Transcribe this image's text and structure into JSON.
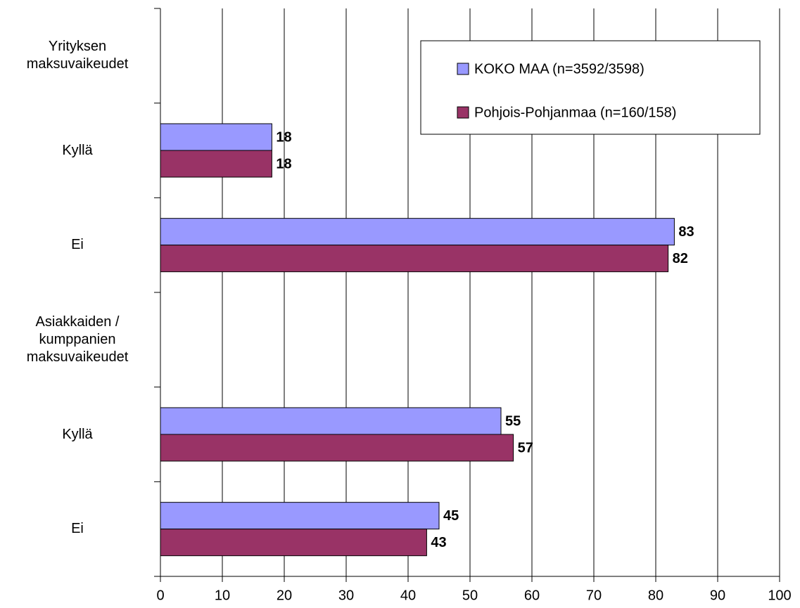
{
  "chart_data": {
    "type": "hbar",
    "categories": [
      "Yrityksen\nmaksuvaikeudet",
      "Kyllä",
      "Ei",
      "Asiakkaiden /\nkumppanien\nmaksuvaikeudet",
      "Kyllä",
      "Ei"
    ],
    "series": [
      {
        "name": "KOKO MAA (n=3592/3598)",
        "color": "#9999ff",
        "values": [
          null,
          18,
          83,
          null,
          55,
          45
        ]
      },
      {
        "name": "Pohjois-Pohjanmaa (n=160/158)",
        "color": "#993366",
        "values": [
          null,
          18,
          82,
          null,
          57,
          43
        ]
      }
    ],
    "xlim": [
      0,
      100
    ],
    "xticks": [
      0,
      10,
      20,
      30,
      40,
      50,
      60,
      70,
      80,
      90,
      100
    ],
    "grid": true,
    "legend": "upper right"
  }
}
